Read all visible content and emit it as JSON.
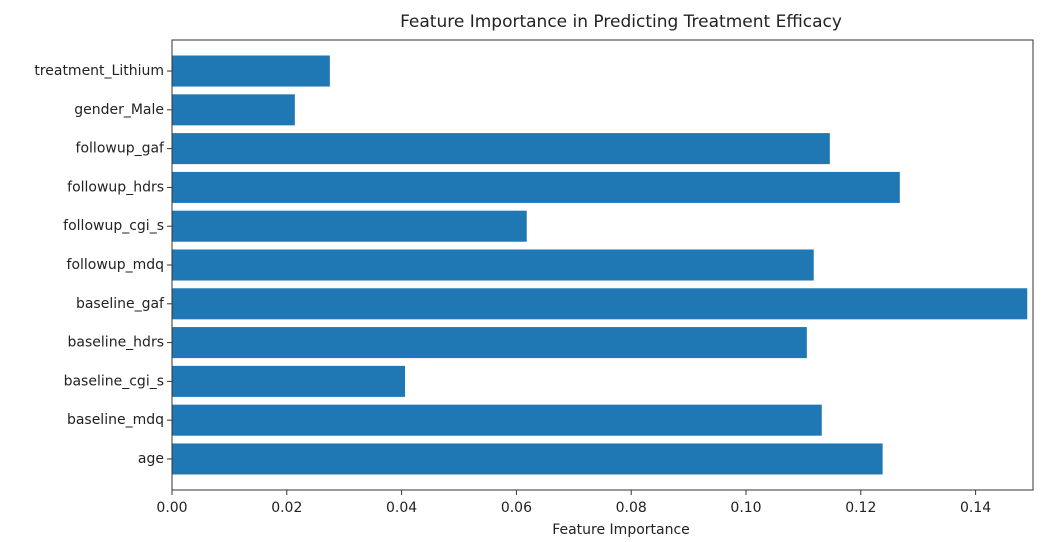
{
  "chart_data": {
    "type": "barh",
    "title": "Feature Importance in Predicting Treatment Efficacy",
    "x_label": "Feature Importance",
    "categories": [
      "age",
      "baseline_mdq",
      "baseline_cgi_s",
      "baseline_hdrs",
      "baseline_gaf",
      "followup_mdq",
      "followup_cgi_s",
      "followup_hdrs",
      "followup_gaf",
      "gender_Male",
      "treatment_Lithium"
    ],
    "values": [
      0.1238,
      0.1132,
      0.0406,
      0.1106,
      0.149,
      0.1118,
      0.0618,
      0.1268,
      0.1146,
      0.0214,
      0.0275
    ],
    "color": "#1f77b4",
    "xlim": [
      0,
      0.15
    ],
    "xticks": [
      {
        "value": 0,
        "label": "0.00"
      },
      {
        "value": 0.02,
        "label": "0.02"
      },
      {
        "value": 0.04,
        "label": "0.04"
      },
      {
        "value": 0.06,
        "label": "0.06"
      },
      {
        "value": 0.08,
        "label": "0.08"
      },
      {
        "value": 0.1,
        "label": "0.10"
      },
      {
        "value": 0.12,
        "label": "0.12"
      },
      {
        "value": 0.14,
        "label": "0.14"
      }
    ],
    "grid": false
  }
}
